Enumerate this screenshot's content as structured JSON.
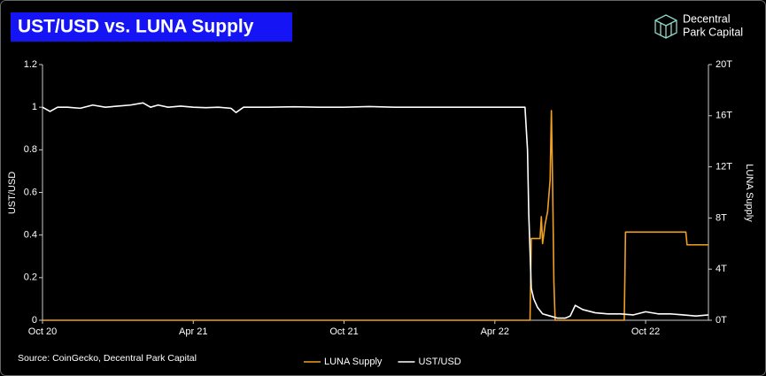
{
  "chart_data": {
    "type": "line",
    "title": "UST/USD vs. LUNA Supply",
    "logo_lines": [
      "Decentral",
      "Park Capital"
    ],
    "source": "Source: CoinGecko, Decentral Park Capital",
    "ylabel": "UST/USD",
    "y2label": "LUNA Supply",
    "xlim": [
      0,
      26.5
    ],
    "xticks": [
      {
        "value": 0,
        "label": "Oct 20"
      },
      {
        "value": 6,
        "label": "Apr 21"
      },
      {
        "value": 12,
        "label": "Oct 21"
      },
      {
        "value": 18,
        "label": "Apr 22"
      },
      {
        "value": 24,
        "label": "Oct 22"
      }
    ],
    "ylim": [
      0,
      1.2
    ],
    "yticks": [
      0,
      0.2,
      0.4,
      0.6,
      0.8,
      1,
      1.2
    ],
    "y2lim": [
      0,
      20
    ],
    "y2ticks": [
      {
        "value": 0,
        "label": "0T"
      },
      {
        "value": 4,
        "label": "4T"
      },
      {
        "value": 8,
        "label": "8T"
      },
      {
        "value": 12,
        "label": "12T"
      },
      {
        "value": 16,
        "label": "16T"
      },
      {
        "value": 20,
        "label": "20T"
      }
    ],
    "series": [
      {
        "name": "LUNA Supply",
        "color": "#f0a020",
        "axis": "y2",
        "x": [
          0,
          19.4,
          19.45,
          19.8,
          19.85,
          19.9,
          20.0,
          20.1,
          20.2,
          20.25,
          20.3,
          20.35,
          20.4,
          21,
          23.15,
          23.2,
          25.6,
          25.65,
          26.5
        ],
        "values": [
          0,
          0,
          6.4,
          6.4,
          8.1,
          6.0,
          7.5,
          8.5,
          11,
          16.4,
          10.5,
          3,
          0,
          0,
          0,
          6.9,
          6.9,
          5.9,
          5.9
        ]
      },
      {
        "name": "UST/USD",
        "color": "#ffffff",
        "x": [
          0,
          0.3,
          0.6,
          1,
          1.5,
          2,
          2.5,
          3,
          3.5,
          4,
          4.3,
          4.6,
          5,
          5.5,
          6,
          6.5,
          7,
          7.5,
          7.7,
          8,
          9,
          10,
          11,
          12,
          13,
          14,
          15,
          16,
          17,
          18,
          19,
          19.2,
          19.3,
          19.35,
          19.45,
          19.55,
          19.7,
          19.9,
          20.2,
          20.5,
          20.8,
          21,
          21.2,
          21.5,
          22,
          22.5,
          23,
          23.5,
          24,
          24.5,
          25,
          25.5,
          26,
          26.5
        ],
        "values": [
          1,
          0.98,
          1,
          1,
          0.995,
          1.01,
          1,
          1.005,
          1.01,
          1.02,
          1,
          1.01,
          1,
          1.005,
          1,
          0.998,
          1,
          0.995,
          0.975,
          1,
          1,
          1.002,
          1,
          1,
          1.003,
          1,
          1,
          1,
          1,
          1,
          1,
          1,
          0.8,
          0.5,
          0.15,
          0.1,
          0.06,
          0.03,
          0.02,
          0.01,
          0.01,
          0.02,
          0.07,
          0.05,
          0.035,
          0.03,
          0.03,
          0.025,
          0.04,
          0.03,
          0.03,
          0.025,
          0.02,
          0.025
        ]
      }
    ]
  }
}
